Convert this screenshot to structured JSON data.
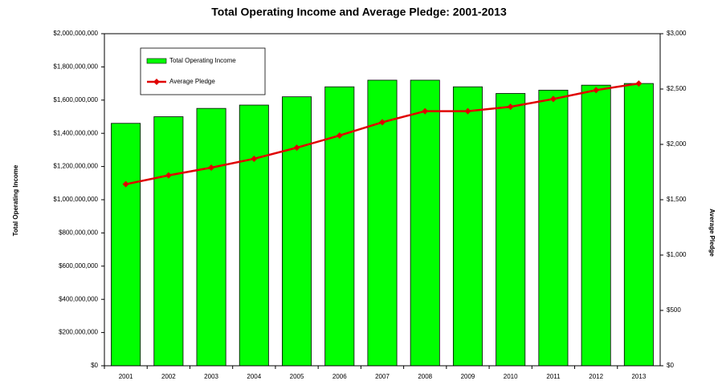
{
  "chart_data": {
    "type": "bar_line",
    "title": "Total Operating Income and Average Pledge: 2001-2013",
    "y_label": "Total Operating Income",
    "y2_label": "Average Pledge",
    "categories": [
      "2001",
      "2002",
      "2003",
      "2004",
      "2005",
      "2006",
      "2007",
      "2008",
      "2009",
      "2010",
      "2011",
      "2012",
      "2013"
    ],
    "series": [
      {
        "name": "Total Operating Income",
        "type": "bar",
        "color": "#00ff00",
        "values": [
          1460000000,
          1500000000,
          1550000000,
          1570000000,
          1620000000,
          1680000000,
          1720000000,
          1720000000,
          1680000000,
          1640000000,
          1660000000,
          1690000000,
          1700000000
        ]
      },
      {
        "name": "Average Pledge",
        "type": "line",
        "axis": "y2",
        "color": "#e00000",
        "values": [
          1640,
          1720,
          1790,
          1870,
          1970,
          2080,
          2200,
          2300,
          2300,
          2340,
          2410,
          2490,
          2550
        ]
      }
    ],
    "ylim": [
      0,
      2000000000
    ],
    "yticks": [
      {
        "value": 0,
        "label": "$0"
      },
      {
        "value": 200000000,
        "label": "$200,000,000"
      },
      {
        "value": 400000000,
        "label": "$400,000,000"
      },
      {
        "value": 600000000,
        "label": "$600,000,000"
      },
      {
        "value": 800000000,
        "label": "$800,000,000"
      },
      {
        "value": 1000000000,
        "label": "$1,000,000,000"
      },
      {
        "value": 1200000000,
        "label": "$1,200,000,000"
      },
      {
        "value": 1400000000,
        "label": "$1,400,000,000"
      },
      {
        "value": 1600000000,
        "label": "$1,600,000,000"
      },
      {
        "value": 1800000000,
        "label": "$1,800,000,000"
      },
      {
        "value": 2000000000,
        "label": "$2,000,000,000"
      }
    ],
    "y2lim": [
      0,
      3000
    ],
    "y2ticks": [
      {
        "value": 0,
        "label": "$0"
      },
      {
        "value": 500,
        "label": "$500"
      },
      {
        "value": 1000,
        "label": "$1,000"
      },
      {
        "value": 1500,
        "label": "$1,500"
      },
      {
        "value": 2000,
        "label": "$2,000"
      },
      {
        "value": 2500,
        "label": "$2,500"
      },
      {
        "value": 3000,
        "label": "$3,000"
      }
    ],
    "grid": false,
    "legend": "upper left"
  }
}
